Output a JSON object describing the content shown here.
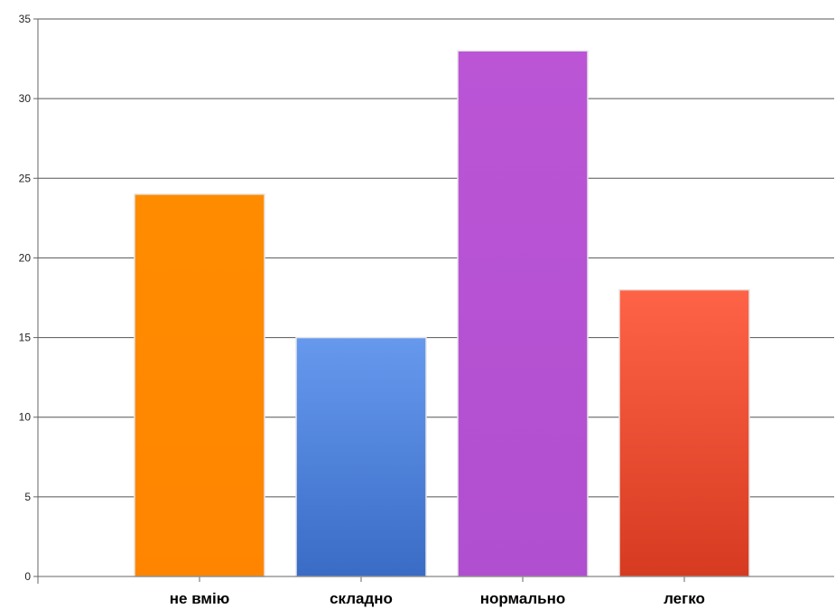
{
  "chart_data": {
    "type": "bar",
    "title": "",
    "xlabel": "",
    "ylabel": "",
    "categories": [
      "не вмію",
      "складно",
      "нормально",
      "легко"
    ],
    "values": [
      24,
      15,
      33,
      18
    ],
    "ylim": [
      0,
      35
    ],
    "yticks": [
      0,
      5,
      10,
      15,
      20,
      25,
      30,
      35
    ],
    "grid": true,
    "legend": "none",
    "colors": [
      {
        "top": "#ff8c00",
        "bottom": "#ff8500"
      },
      {
        "top": "#6699ee",
        "bottom": "#3a6cc6"
      },
      {
        "top": "#bb55d6",
        "bottom": "#b04fd0"
      },
      {
        "top": "#ff6347",
        "bottom": "#d63a20"
      }
    ]
  }
}
